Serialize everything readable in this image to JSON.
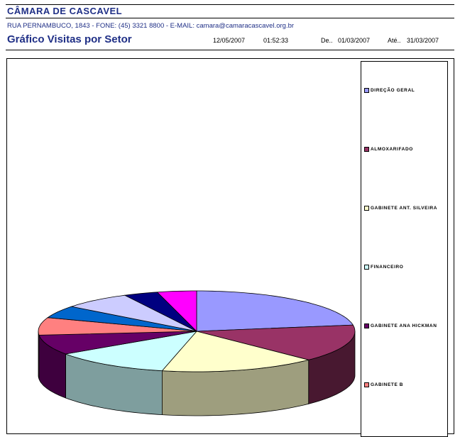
{
  "header": {
    "org_name": "CÂMARA DE CASCAVEL",
    "address": "RUA PERNAMBUCO, 1843 - FONE: (45) 3321 8800 - E-MAIL: camara@camaracascavel.org.br",
    "report_title": "Gráfico Visitas por Setor",
    "date": "12/05/2007",
    "time": "01:52:33",
    "from_label": "De..",
    "from_date": "01/03/2007",
    "to_label": "Até..",
    "to_date": "31/03/2007"
  },
  "legend": {
    "items": [
      {
        "label": "DIREÇÃO GERAL",
        "color": "#9999ff"
      },
      {
        "label": "ALMOXARIFADO",
        "color": "#993366"
      },
      {
        "label": "GABINETE ANT. SILVEIRA",
        "color": "#ffffcc"
      },
      {
        "label": "FINANCEIRO",
        "color": "#ccffff"
      },
      {
        "label": "GABINETE ANA HICKMAN",
        "color": "#660066"
      },
      {
        "label": "GABINETE B",
        "color": "#ff8080"
      }
    ]
  },
  "chart_data": {
    "type": "pie",
    "style": "3d",
    "title": "",
    "legend_position": "right",
    "slices": [
      {
        "color": "#9999ff",
        "value": 22.5
      },
      {
        "color": "#993366",
        "value": 15
      },
      {
        "color": "#ffffcc",
        "value": 16
      },
      {
        "color": "#ccffff",
        "value": 12
      },
      {
        "color": "#660066",
        "value": 8
      },
      {
        "color": "#ff8080",
        "value": 7
      },
      {
        "color": "#0066cc",
        "value": 5
      },
      {
        "color": "#ccccff",
        "value": 7
      },
      {
        "color": "#000080",
        "value": 3.5
      },
      {
        "color": "#ff00ff",
        "value": 4
      }
    ]
  }
}
